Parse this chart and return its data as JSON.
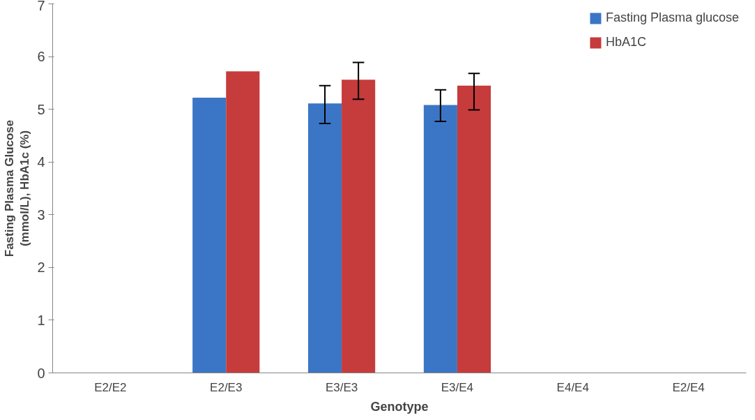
{
  "chart_data": {
    "type": "bar",
    "xlabel": "Genotype",
    "ylabel": "Fasting Plasma Glucose\n(mmol/L), HbA1c (%)",
    "categories": [
      "E2/E2",
      "E2/E3",
      "E3/E3",
      "E3/E4",
      "E4/E4",
      "E2/E4"
    ],
    "series": [
      {
        "name": "Fasting Plasma glucose",
        "color": "#3b76c6",
        "values": [
          null,
          5.22,
          5.11,
          5.08,
          null,
          null
        ],
        "errors": [
          null,
          null,
          [
            4.73,
            5.45
          ],
          [
            4.77,
            5.37
          ],
          null,
          null
        ]
      },
      {
        "name": "HbA1C",
        "color": "#c63b3b",
        "values": [
          null,
          5.72,
          5.56,
          5.45,
          null,
          null
        ],
        "errors": [
          null,
          null,
          [
            5.19,
            5.89
          ],
          [
            4.99,
            5.68
          ],
          null,
          null
        ]
      }
    ],
    "ylim": [
      0,
      7
    ],
    "yticks": [
      0,
      1,
      2,
      3,
      4,
      5,
      6,
      7
    ],
    "grid": false,
    "legend": "top right"
  }
}
